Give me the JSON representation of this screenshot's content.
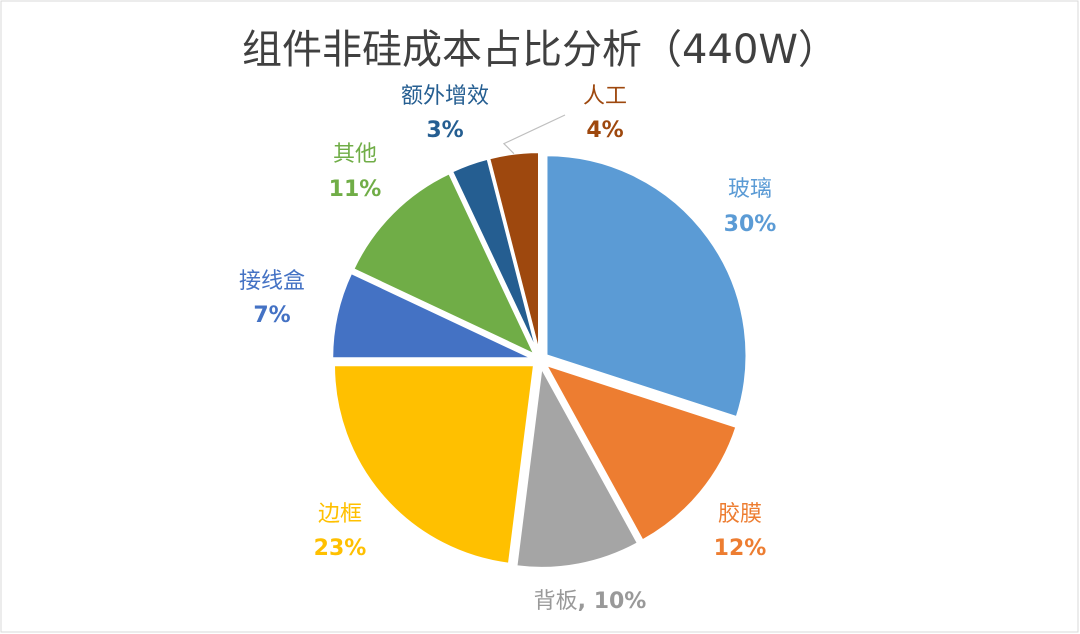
{
  "chart_data": {
    "type": "pie",
    "title": "组件非硅成本占比分析（440W）",
    "categories": [
      "玻璃",
      "胶膜",
      "背板",
      "边框",
      "接线盒",
      "其他",
      "额外增效",
      "人工"
    ],
    "values": [
      30,
      12,
      10,
      23,
      7,
      11,
      3,
      4
    ],
    "value_labels": [
      "30%",
      "12%",
      "10%",
      "23%",
      "7%",
      "11%",
      "3%",
      "4%"
    ],
    "label_separator": ", ",
    "colors": [
      "#5b9bd5",
      "#ed7d31",
      "#a5a5a5",
      "#ffc000",
      "#4472c4",
      "#70ad47",
      "#255e91",
      "#9e480e"
    ]
  }
}
